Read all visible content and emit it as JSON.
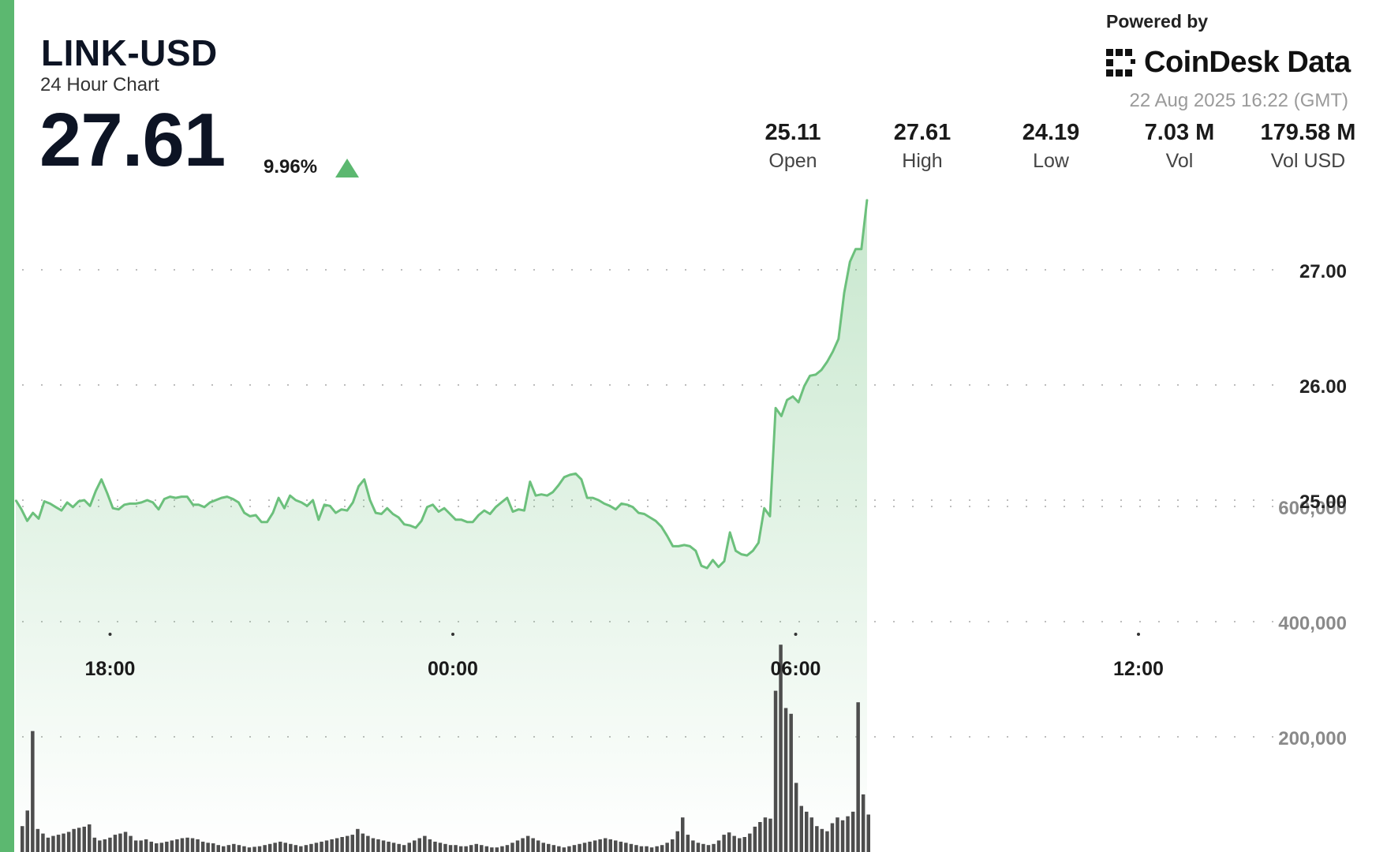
{
  "header": {
    "symbol": "LINK-USD",
    "subtitle": "24 Hour Chart",
    "price": "27.61",
    "change_pct": "9.96%",
    "trend_icon": "up-triangle-icon"
  },
  "branding": {
    "powered_by": "Powered by",
    "logo_text": "CoinDesk Data",
    "logo_icon": "coindesk-logo-icon",
    "timestamp": "22 Aug 2025 16:22 (GMT)"
  },
  "stats": [
    {
      "value": "25.11",
      "label": "Open"
    },
    {
      "value": "27.61",
      "label": "High"
    },
    {
      "value": "24.19",
      "label": "Low"
    },
    {
      "value": "7.03 M",
      "label": "Vol"
    },
    {
      "value": "179.58 M",
      "label": "Vol USD"
    }
  ],
  "colors": {
    "accent": "#5cb870",
    "line": "#6cc07c",
    "bars": "#4d4d4d",
    "text": "#0d1424"
  },
  "chart_data": {
    "type": "line",
    "xlabel": "",
    "ylabel": "",
    "x_tick_labels": [
      "18:00",
      "00:00",
      "06:00",
      "12:00"
    ],
    "x_tick_hours": [
      1.65,
      7.65,
      13.65,
      19.65
    ],
    "price_axis": {
      "ticks": [
        25,
        26,
        27
      ],
      "tick_labels": [
        "25.00",
        "26.00",
        "27.00"
      ],
      "range": [
        23.9,
        28.2
      ]
    },
    "volume_axis": {
      "ticks": [
        200000,
        400000,
        600000
      ],
      "tick_labels": [
        "200,000",
        "400,000",
        "600,000"
      ],
      "range": [
        0,
        830000
      ]
    },
    "grid": true,
    "series": [
      {
        "kind": "price",
        "x_start_hour": 0,
        "x_step_hours": 0.1,
        "values": [
          25.0,
          24.92,
          24.82,
          24.89,
          24.84,
          24.99,
          24.97,
          24.94,
          24.91,
          24.98,
          24.94,
          24.99,
          25.0,
          24.95,
          25.08,
          25.18,
          25.06,
          24.93,
          24.92,
          24.96,
          24.97,
          24.97,
          24.98,
          25.0,
          24.98,
          24.92,
          25.01,
          25.03,
          25.02,
          25.03,
          25.03,
          24.96,
          24.96,
          24.94,
          24.98,
          25.0,
          25.02,
          25.03,
          25.01,
          24.98,
          24.89,
          24.86,
          24.87,
          24.81,
          24.81,
          24.89,
          25.02,
          24.93,
          25.04,
          25.0,
          24.98,
          24.95,
          25.0,
          24.83,
          24.96,
          24.95,
          24.89,
          24.92,
          24.91,
          24.98,
          25.12,
          25.18,
          25.0,
          24.89,
          24.88,
          24.93,
          24.88,
          24.85,
          24.79,
          24.78,
          24.76,
          24.82,
          24.94,
          24.96,
          24.9,
          24.93,
          24.88,
          24.83,
          24.83,
          24.81,
          24.81,
          24.87,
          24.91,
          24.88,
          24.94,
          24.98,
          25.02,
          24.9,
          24.92,
          24.91,
          25.16,
          25.04,
          25.05,
          25.04,
          25.07,
          25.13,
          25.2,
          25.22,
          25.23,
          25.18,
          25.02,
          25.02,
          25.0,
          24.97,
          24.95,
          24.92,
          24.97,
          24.96,
          24.94,
          24.89,
          24.88,
          24.85,
          24.82,
          24.77,
          24.69,
          24.6,
          24.6,
          24.61,
          24.6,
          24.56,
          24.43,
          24.41,
          24.48,
          24.42,
          24.47,
          24.72,
          24.56,
          24.53,
          24.52,
          24.56,
          24.63,
          24.93,
          24.86,
          25.8,
          25.73,
          25.87,
          25.9,
          25.85,
          25.99,
          26.08,
          26.09,
          26.13,
          26.2,
          26.29,
          26.4,
          26.8,
          27.07,
          27.18,
          27.18,
          27.61
        ]
      },
      {
        "kind": "volume",
        "values": [
          45000,
          72000,
          210000,
          40000,
          32000,
          25000,
          28000,
          30000,
          32000,
          35000,
          40000,
          42000,
          44000,
          48000,
          25000,
          20000,
          22000,
          25000,
          30000,
          32000,
          35000,
          28000,
          20000,
          20000,
          22000,
          18000,
          15000,
          16000,
          18000,
          20000,
          22000,
          24000,
          25000,
          24000,
          22000,
          18000,
          16000,
          15000,
          12000,
          10000,
          12000,
          14000,
          12000,
          10000,
          8000,
          9000,
          10000,
          12000,
          14000,
          16000,
          18000,
          16000,
          14000,
          12000,
          10000,
          12000,
          14000,
          16000,
          18000,
          20000,
          22000,
          24000,
          26000,
          28000,
          30000,
          40000,
          32000,
          28000,
          24000,
          22000,
          20000,
          18000,
          16000,
          14000,
          12000,
          16000,
          20000,
          24000,
          28000,
          22000,
          18000,
          16000,
          14000,
          12000,
          12000,
          10000,
          10000,
          12000,
          14000,
          12000,
          10000,
          8000,
          8000,
          10000,
          12000,
          16000,
          20000,
          24000,
          28000,
          24000,
          20000,
          16000,
          14000,
          12000,
          10000,
          8000,
          10000,
          12000,
          14000,
          16000,
          18000,
          20000,
          22000,
          24000,
          22000,
          20000,
          18000,
          16000,
          14000,
          12000,
          10000,
          10000,
          8000,
          10000,
          12000,
          16000,
          22000,
          36000,
          60000,
          30000,
          20000,
          16000,
          14000,
          12000,
          14000,
          20000,
          30000,
          34000,
          28000,
          24000,
          26000,
          32000,
          44000,
          52000,
          60000,
          58000,
          280000,
          360000,
          250000,
          240000,
          120000,
          80000,
          70000,
          60000,
          45000,
          40000,
          36000,
          50000,
          60000,
          55000,
          62000,
          70000,
          260000,
          100000,
          65000
        ]
      }
    ]
  }
}
